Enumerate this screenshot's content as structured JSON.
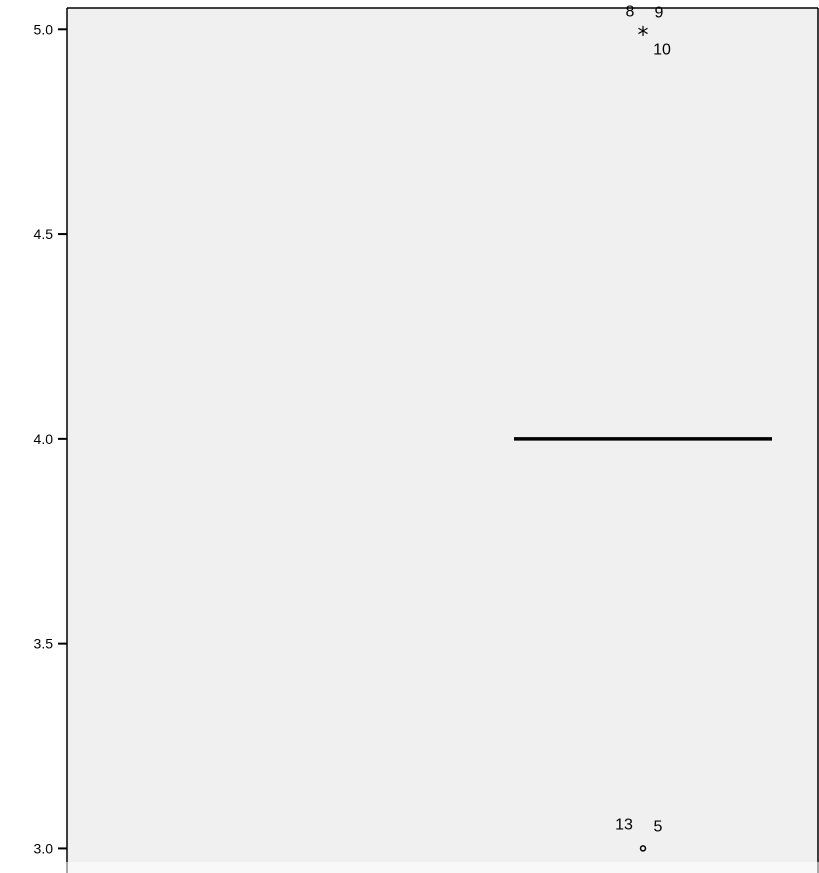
{
  "chart_data": {
    "type": "boxplot",
    "title": "",
    "xlabel": "",
    "ylabel": "",
    "ylim": [
      2.94,
      5.052
    ],
    "grid": false,
    "yticks": [
      {
        "value": 3.0,
        "label": "3.0"
      },
      {
        "value": 3.5,
        "label": "3.5"
      },
      {
        "value": 4.0,
        "label": "4.0"
      },
      {
        "value": 4.5,
        "label": "4.5"
      },
      {
        "value": 5.0,
        "label": "5.0"
      }
    ],
    "box": {
      "median": 4.0,
      "q1": 4.0,
      "q3": 4.0
    },
    "extreme_outliers": {
      "value": 5.0,
      "marker": "*",
      "cases": [
        "8",
        "9",
        "10"
      ]
    },
    "outliers": {
      "value": 3.0,
      "marker": "o",
      "cases": [
        "13",
        "5"
      ]
    },
    "colors": {
      "plot_background": "#f0f0f0",
      "median_line": "#000000",
      "axis": "#000000"
    }
  }
}
